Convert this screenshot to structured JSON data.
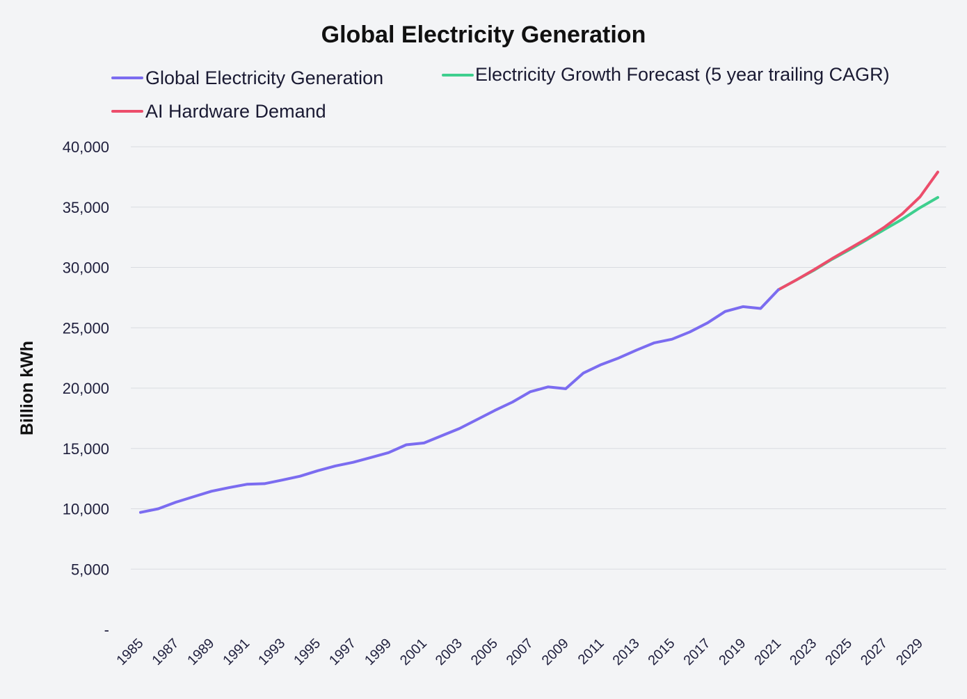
{
  "chart_data": {
    "type": "line",
    "title": "Global Electricity Generation",
    "xlabel": "",
    "ylabel": "Billion kWh",
    "ylim": [
      0,
      40000
    ],
    "grid": true,
    "legend_position": "top-left",
    "y_ticks": [
      {
        "value": 0,
        "label": "-"
      },
      {
        "value": 5000,
        "label": "5,000"
      },
      {
        "value": 10000,
        "label": "10,000"
      },
      {
        "value": 15000,
        "label": "15,000"
      },
      {
        "value": 20000,
        "label": "20,000"
      },
      {
        "value": 25000,
        "label": "25,000"
      },
      {
        "value": 30000,
        "label": "30,000"
      },
      {
        "value": 35000,
        "label": "35,000"
      },
      {
        "value": 40000,
        "label": "40,000"
      }
    ],
    "x_tick_labels": [
      "1985",
      "1987",
      "1989",
      "1991",
      "1993",
      "1995",
      "1997",
      "1999",
      "2001",
      "2003",
      "2005",
      "2007",
      "2009",
      "2011",
      "2013",
      "2015",
      "2017",
      "2019",
      "2021",
      "2023",
      "2025",
      "2027",
      "2029"
    ],
    "series": [
      {
        "name": "Global Electricity Generation",
        "color": "#7b6cf0",
        "x": [
          1985,
          1986,
          1987,
          1988,
          1989,
          1990,
          1991,
          1992,
          1993,
          1994,
          1995,
          1996,
          1997,
          1998,
          1999,
          2000,
          2001,
          2002,
          2003,
          2004,
          2005,
          2006,
          2007,
          2008,
          2009,
          2010,
          2011,
          2012,
          2013,
          2014,
          2015,
          2016,
          2017,
          2018,
          2019,
          2020,
          2021
        ],
        "values": [
          9700,
          10000,
          10550,
          11000,
          11450,
          11750,
          12030,
          12080,
          12380,
          12700,
          13150,
          13550,
          13850,
          14250,
          14650,
          15300,
          15450,
          16050,
          16650,
          17400,
          18150,
          18850,
          19700,
          20100,
          19950,
          21250,
          21950,
          22500,
          23150,
          23750,
          24050,
          24650,
          25400,
          26350,
          26750,
          26600,
          28150
        ]
      },
      {
        "name": "Electricity Growth Forecast (5 year trailing CAGR)",
        "color": "#3ecf8e",
        "x": [
          2021,
          2022,
          2023,
          2024,
          2025,
          2026,
          2027,
          2028,
          2029,
          2030
        ],
        "values": [
          28150,
          28950,
          29750,
          30650,
          31450,
          32300,
          33150,
          34000,
          34950,
          35800
        ]
      },
      {
        "name": "AI Hardware Demand",
        "color": "#ec4d6b",
        "x": [
          2021,
          2022,
          2023,
          2024,
          2025,
          2026,
          2027,
          2028,
          2029,
          2030
        ],
        "values": [
          28150,
          28950,
          29800,
          30700,
          31550,
          32400,
          33350,
          34450,
          35850,
          37900
        ]
      }
    ]
  }
}
